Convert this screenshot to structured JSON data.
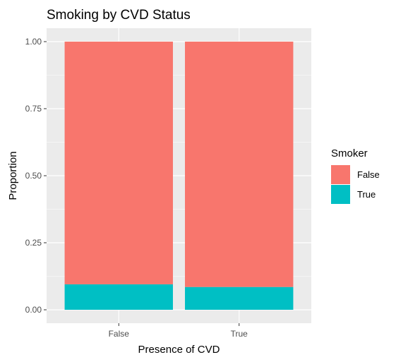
{
  "chart_data": {
    "type": "bar",
    "stacked": true,
    "title": "Smoking by CVD Status",
    "xlabel": "Presence of CVD",
    "ylabel": "Proportion",
    "categories": [
      "False",
      "True"
    ],
    "ylim": [
      0,
      1
    ],
    "y_ticks": [
      "0.00",
      "0.25",
      "0.50",
      "0.75",
      "1.00"
    ],
    "y_tick_values": [
      0,
      0.25,
      0.5,
      0.75,
      1
    ],
    "grid": true,
    "legend": {
      "title": "Smoker",
      "position": "right"
    },
    "series": [
      {
        "name": "True",
        "values": [
          0.095,
          0.085
        ],
        "color": "#00BFC4"
      },
      {
        "name": "False",
        "values": [
          0.905,
          0.915
        ],
        "color": "#F8766D"
      }
    ],
    "legend_order": [
      "False",
      "True"
    ]
  }
}
